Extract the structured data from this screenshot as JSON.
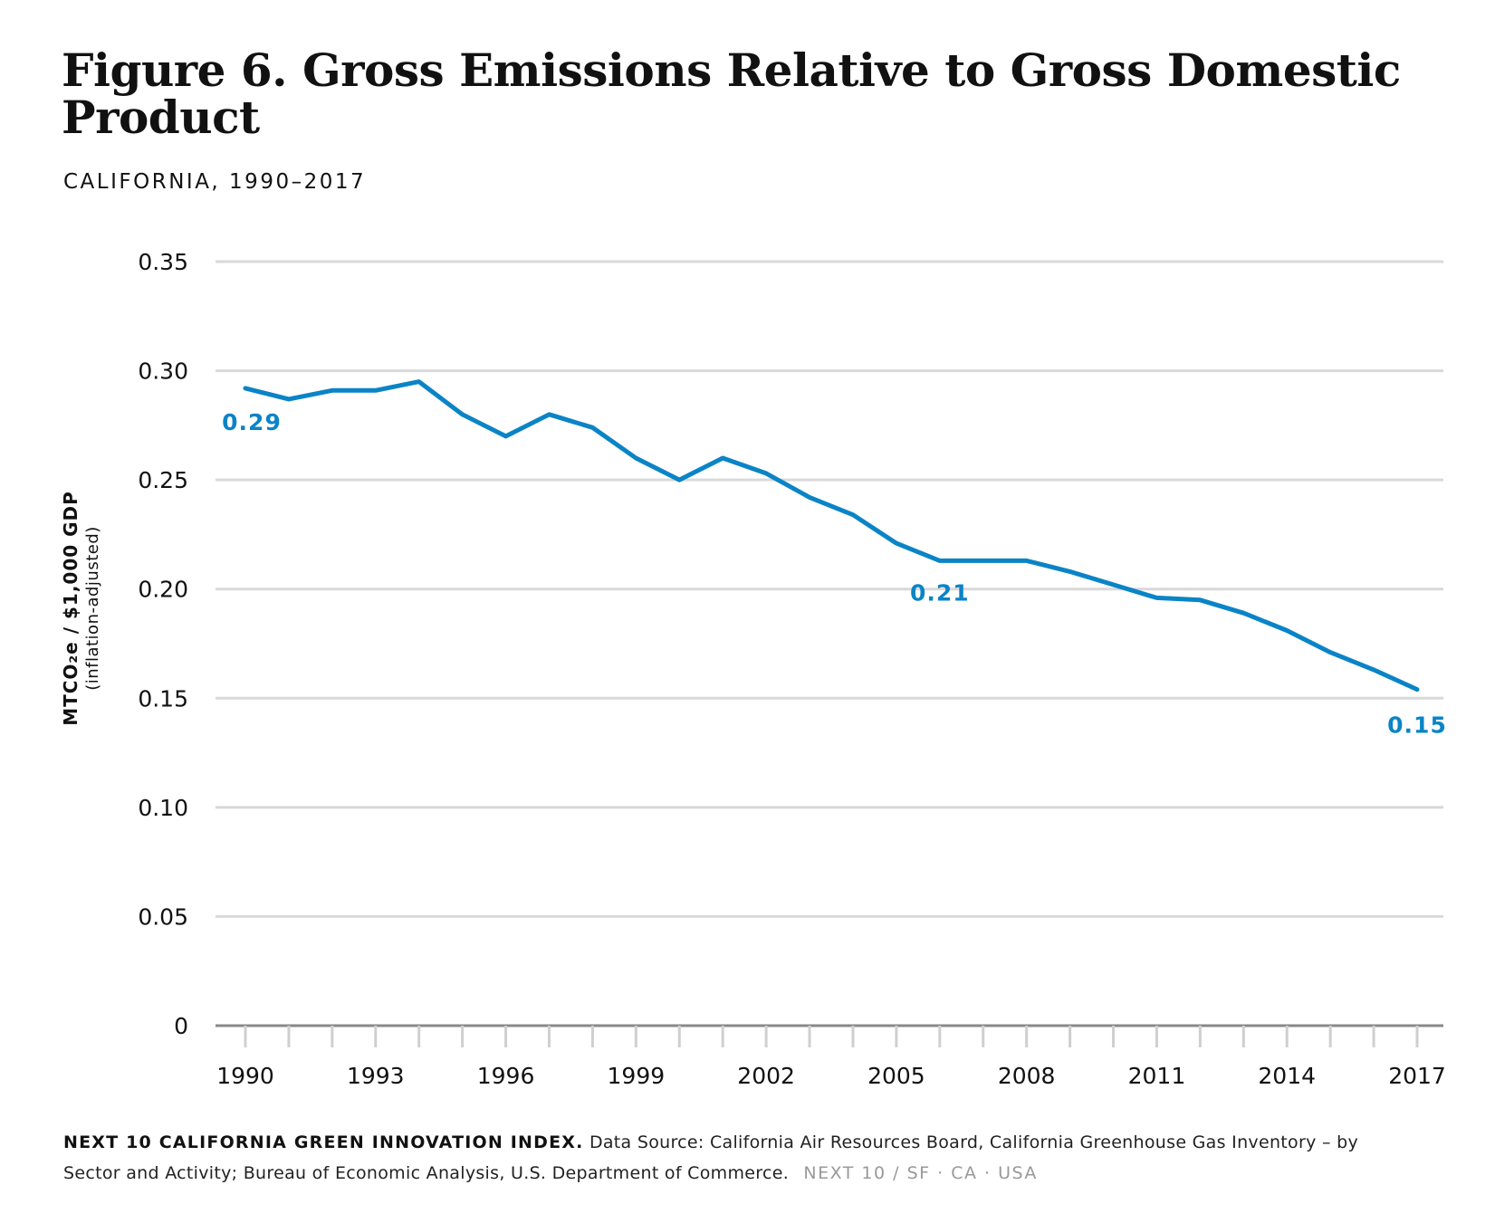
{
  "title": "Figure 6. Gross Emissions Relative to Gross Domestic Product",
  "subtitle": "CALIFORNIA, 1990–2017",
  "footer": {
    "source_title": "NEXT 10 CALIFORNIA GREEN INNOVATION INDEX.",
    "source_text": "Data Source: California Air Resources Board, California Greenhouse Gas Inventory – by Sector and Activity; Bureau of Economic Analysis, U.S. Department of Commerce.",
    "brand": "NEXT 10  /  SF · CA · USA"
  },
  "colors": {
    "series": "#0a84c6",
    "grid": "#d9d9d9",
    "axis": "#888888",
    "text": "#111111"
  },
  "chart_data": {
    "type": "line",
    "ylabel": "MTCO₂e / $1,000 GDP",
    "ylabel_sub": "(inflation-adjusted)",
    "ylim": [
      0,
      0.35
    ],
    "yticks": [
      0,
      0.05,
      0.1,
      0.15,
      0.2,
      0.25,
      0.3,
      0.35
    ],
    "ytick_labels": [
      "0",
      "0.05",
      "0.10",
      "0.15",
      "0.20",
      "0.25",
      "0.30",
      "0.35"
    ],
    "xlim": [
      1990,
      2017
    ],
    "xtick_labels": [
      "1990",
      "1993",
      "1996",
      "1999",
      "2002",
      "2005",
      "2008",
      "2011",
      "2014",
      "2017"
    ],
    "grid": true,
    "x": [
      1990,
      1991,
      1992,
      1993,
      1994,
      1995,
      1996,
      1997,
      1998,
      1999,
      2000,
      2001,
      2002,
      2003,
      2004,
      2005,
      2006,
      2007,
      2008,
      2009,
      2010,
      2011,
      2012,
      2013,
      2014,
      2015,
      2016,
      2017
    ],
    "series": [
      {
        "values": [
          0.292,
          0.287,
          0.291,
          0.291,
          0.295,
          0.28,
          0.27,
          0.28,
          0.274,
          0.26,
          0.25,
          0.26,
          0.253,
          0.242,
          0.234,
          0.221,
          0.213,
          0.213,
          0.213,
          0.208,
          0.202,
          0.196,
          0.195,
          0.189,
          0.181,
          0.171,
          0.163,
          0.154
        ]
      }
    ],
    "annotations": [
      {
        "x": 1990,
        "y": 0.292,
        "text": "0.29"
      },
      {
        "x": 2006,
        "y": 0.213,
        "text": "0.21"
      },
      {
        "x": 2017,
        "y": 0.154,
        "text": "0.15"
      }
    ]
  }
}
